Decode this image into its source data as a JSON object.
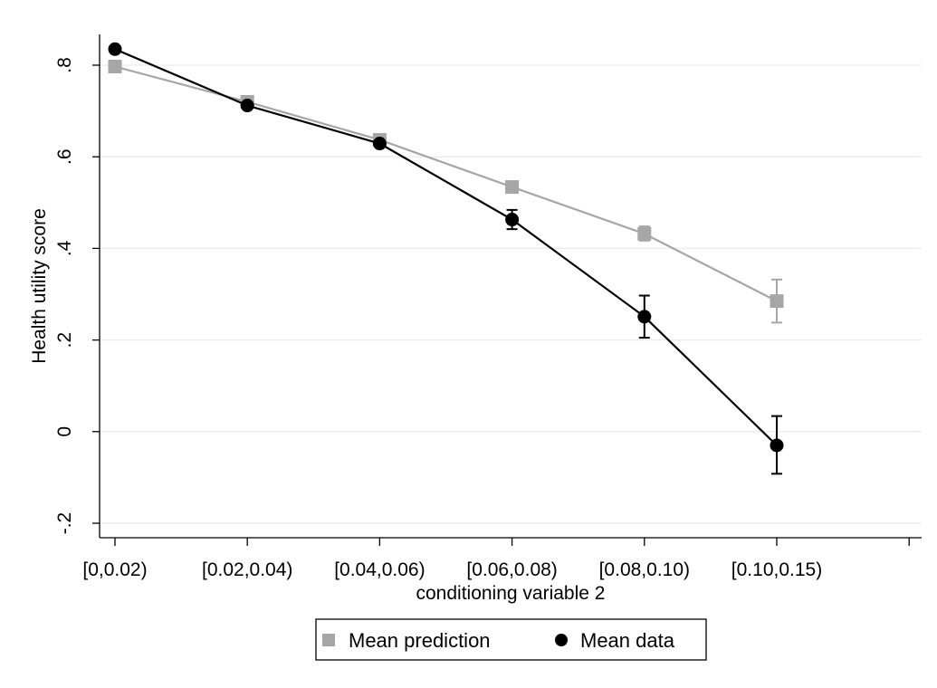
{
  "chart_data": {
    "type": "line",
    "title": "",
    "xlabel": "conditioning variable 2",
    "ylabel": "Health utility score",
    "categories": [
      "[0,0.02)",
      "[0.02,0.04)",
      "[0.04,0.06)",
      "[0.06,0.08)",
      "[0.08,0.10)",
      "[0.10,0.15)"
    ],
    "ylim": [
      -0.2,
      0.8
    ],
    "yticks": [
      -0.2,
      0,
      0.2,
      0.4,
      0.6,
      0.8
    ],
    "ytick_labels": [
      "-.2",
      "0",
      ".2",
      ".4",
      ".6",
      ".8"
    ],
    "grid": true,
    "legend_position": "bottom",
    "series": [
      {
        "name": "Mean prediction",
        "marker": "square",
        "color": "#a6a6a6",
        "values": [
          0.797,
          0.72,
          0.637,
          0.534,
          0.432,
          0.285
        ],
        "ci_lower": [
          0.797,
          0.72,
          0.637,
          0.534,
          0.417,
          0.238
        ],
        "ci_upper": [
          0.797,
          0.72,
          0.637,
          0.534,
          0.448,
          0.332
        ]
      },
      {
        "name": "Mean data",
        "marker": "circle",
        "color": "#000000",
        "values": [
          0.835,
          0.712,
          0.629,
          0.463,
          0.251,
          -0.03
        ],
        "ci_lower": [
          0.835,
          0.712,
          0.629,
          0.442,
          0.205,
          -0.092
        ],
        "ci_upper": [
          0.835,
          0.712,
          0.629,
          0.484,
          0.297,
          0.034
        ]
      }
    ]
  },
  "colors": {
    "gridline": "#e3eef3",
    "axis": "#000000",
    "legend_border": "#000000"
  }
}
